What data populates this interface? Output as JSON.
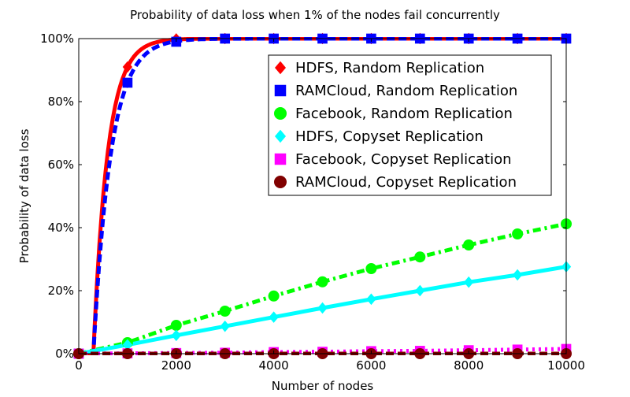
{
  "chart_data": {
    "type": "line",
    "title": "Probability of data loss when 1% of the nodes fail concurrently",
    "xlabel": "Number of nodes",
    "ylabel": "Probability of data loss",
    "xlim": [
      0,
      10000
    ],
    "ylim": [
      0,
      100
    ],
    "x_ticks": [
      0,
      2000,
      4000,
      6000,
      8000,
      10000
    ],
    "x_tick_labels": [
      "0",
      "2000",
      "4000",
      "6000",
      "8000",
      "10000"
    ],
    "y_ticks": [
      0,
      20,
      40,
      60,
      80,
      100
    ],
    "y_tick_labels": [
      "0%",
      "20%",
      "40%",
      "60%",
      "80%",
      "100%"
    ],
    "grid": false,
    "legend_position": "top-right",
    "series": [
      {
        "name": "HDFS, Random Replication",
        "color": "#ff0000",
        "marker": "diamond",
        "line_style": "solid",
        "x": [
          0,
          300,
          1000,
          2000,
          3000,
          4000,
          5000,
          6000,
          7000,
          8000,
          9000,
          10000
        ],
        "values": [
          0,
          0,
          91,
          99.9,
          100,
          100,
          100,
          100,
          100,
          100,
          100,
          100
        ]
      },
      {
        "name": "RAMCloud, Random Replication",
        "color": "#0000ff",
        "marker": "square",
        "line_style": "dashed",
        "x": [
          0,
          300,
          1000,
          2000,
          3000,
          4000,
          5000,
          6000,
          7000,
          8000,
          9000,
          10000
        ],
        "values": [
          0,
          0,
          86,
          99,
          100,
          100,
          100,
          100,
          100,
          100,
          100,
          100
        ]
      },
      {
        "name": "Facebook, Random Replication",
        "color": "#00ff00",
        "marker": "circle",
        "line_style": "dashdot",
        "x": [
          0,
          1000,
          2000,
          3000,
          4000,
          5000,
          6000,
          7000,
          8000,
          9000,
          10000
        ],
        "values": [
          0,
          3.5,
          9,
          13.5,
          18.3,
          22.8,
          27,
          30.7,
          34.5,
          38,
          41.2
        ]
      },
      {
        "name": "HDFS, Copyset Replication",
        "color": "#00ffff",
        "marker": "diamond",
        "line_style": "solid",
        "x": [
          0,
          1000,
          2000,
          3000,
          4000,
          5000,
          6000,
          7000,
          8000,
          9000,
          10000
        ],
        "values": [
          0,
          2.8,
          5.8,
          8.7,
          11.6,
          14.5,
          17.3,
          20,
          22.7,
          25,
          27.6
        ]
      },
      {
        "name": "Facebook, Copyset Replication",
        "color": "#ff00ff",
        "marker": "square",
        "line_style": "dotted",
        "x": [
          0,
          1000,
          2000,
          3000,
          4000,
          5000,
          6000,
          7000,
          8000,
          9000,
          10000
        ],
        "values": [
          0,
          0.1,
          0.2,
          0.3,
          0.5,
          0.6,
          0.8,
          0.9,
          1.1,
          1.3,
          1.5
        ]
      },
      {
        "name": "RAMCloud, Copyset Replication",
        "color": "#800000",
        "marker": "circle",
        "line_style": "dashed",
        "x": [
          0,
          1000,
          2000,
          3000,
          4000,
          5000,
          6000,
          7000,
          8000,
          9000,
          10000
        ],
        "values": [
          0,
          0,
          0,
          0,
          0,
          0,
          0,
          0,
          0,
          0,
          0
        ]
      }
    ]
  }
}
